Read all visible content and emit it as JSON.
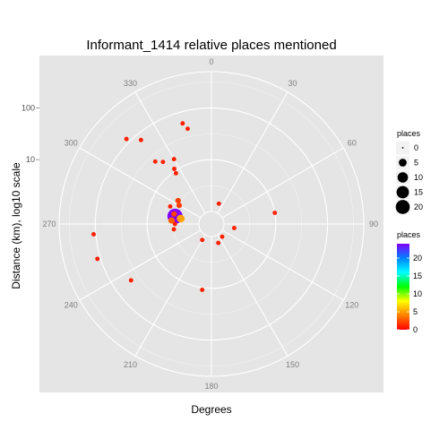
{
  "chart_data": {
    "type": "scatter",
    "coordinate_system": "polar",
    "title": "Informant_1414 relative places mentioned",
    "xlabel": "Degrees",
    "ylabel": "Distance (km), log10 scale",
    "theta_ticks": [
      "0",
      "30",
      "60",
      "90",
      "120",
      "150",
      "180",
      "210",
      "240",
      "270",
      "300",
      "330"
    ],
    "theta_tick_values": [
      0,
      30,
      60,
      90,
      120,
      150,
      180,
      210,
      240,
      270,
      300,
      330
    ],
    "r_ticks": [
      "10",
      "100"
    ],
    "r_tick_values": [
      10,
      100
    ],
    "r_scale": "log10",
    "r_range": [
      1,
      500
    ],
    "grid": true,
    "legend_position": "right",
    "legend_size": {
      "title": "places",
      "labels": [
        "0",
        "5",
        "10",
        "15",
        "20"
      ],
      "values": [
        0,
        5,
        10,
        15,
        20
      ]
    },
    "legend_color": {
      "title": "places",
      "labels": [
        "20",
        "15",
        "10",
        "5",
        "0"
      ],
      "values": [
        20,
        15,
        10,
        5,
        0
      ],
      "range": [
        0,
        24
      ],
      "gradient": [
        "#ff0000",
        "#ff8000",
        "#ffff00",
        "#00ff00",
        "#00ffff",
        "#0080ff",
        "#8000ff"
      ]
    },
    "points": [
      {
        "theta": 344,
        "r": 60,
        "places": 1
      },
      {
        "theta": 346,
        "r": 45,
        "places": 1
      },
      {
        "theta": 315,
        "r": 120,
        "places": 1
      },
      {
        "theta": 320,
        "r": 75,
        "places": 1
      },
      {
        "theta": 318,
        "r": 24,
        "places": 1
      },
      {
        "theta": 330,
        "r": 16,
        "places": 1
      },
      {
        "theta": 322,
        "r": 19,
        "places": 1
      },
      {
        "theta": 326,
        "r": 11,
        "places": 1
      },
      {
        "theta": 325,
        "r": 9,
        "places": 1
      },
      {
        "theta": 293,
        "r": 4.2,
        "places": 1
      },
      {
        "theta": 80,
        "r": 10,
        "places": 1
      },
      {
        "theta": 265,
        "r": 110,
        "places": 1
      },
      {
        "theta": 253,
        "r": 115,
        "places": 1
      },
      {
        "theta": 235,
        "r": 45,
        "places": 1
      },
      {
        "theta": 188,
        "r": 11,
        "places": 1
      },
      {
        "theta": 305,
        "r": 3.5,
        "places": 2
      },
      {
        "theta": 300,
        "r": 3.0,
        "places": 2
      },
      {
        "theta": 285,
        "r": 3.2,
        "places": 2
      },
      {
        "theta": 270,
        "r": 2.9,
        "places": 1
      },
      {
        "theta": 262,
        "r": 3.1,
        "places": 1
      },
      {
        "theta": 275,
        "r": 3.4,
        "places": 3
      },
      {
        "theta": 282,
        "r": 3.0,
        "places": 24
      },
      {
        "theta": 280,
        "r": 2.3,
        "places": 5
      },
      {
        "theta": 20,
        "r": 1.5,
        "places": 1
      },
      {
        "theta": 100,
        "r": 1.6,
        "places": 1
      },
      {
        "theta": 140,
        "r": 1.2,
        "places": 1
      },
      {
        "theta": 160,
        "r": 1.4,
        "places": 1
      },
      {
        "theta": 210,
        "r": 1.3,
        "places": 1
      }
    ]
  }
}
